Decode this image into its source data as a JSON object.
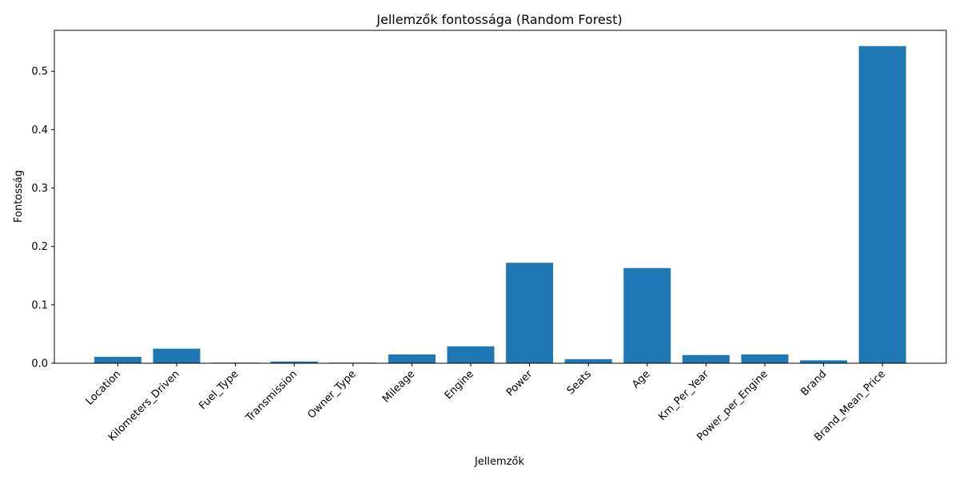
{
  "chart_data": {
    "type": "bar",
    "title": "Jellemzők fontossága (Random Forest)",
    "xlabel": "Jellemzők",
    "ylabel": "Fontosság",
    "categories": [
      "Location",
      "Kilometers_Driven",
      "Fuel_Type",
      "Transmission",
      "Owner_Type",
      "Mileage",
      "Engine",
      "Power",
      "Seats",
      "Age",
      "Km_Per_Year",
      "Power_per_Engine",
      "Brand",
      "Brand_Mean_Price"
    ],
    "values": [
      0.011,
      0.025,
      0.001,
      0.003,
      0.001,
      0.015,
      0.029,
      0.172,
      0.007,
      0.163,
      0.014,
      0.015,
      0.005,
      0.543
    ],
    "ylim": [
      0,
      0.57
    ],
    "yticks": [
      0.0,
      0.1,
      0.2,
      0.3,
      0.4,
      0.5
    ],
    "ytick_labels": [
      "0.0",
      "0.1",
      "0.2",
      "0.3",
      "0.4",
      "0.5"
    ],
    "bar_color": "#1f77b4",
    "grid": false,
    "legend": "none"
  }
}
